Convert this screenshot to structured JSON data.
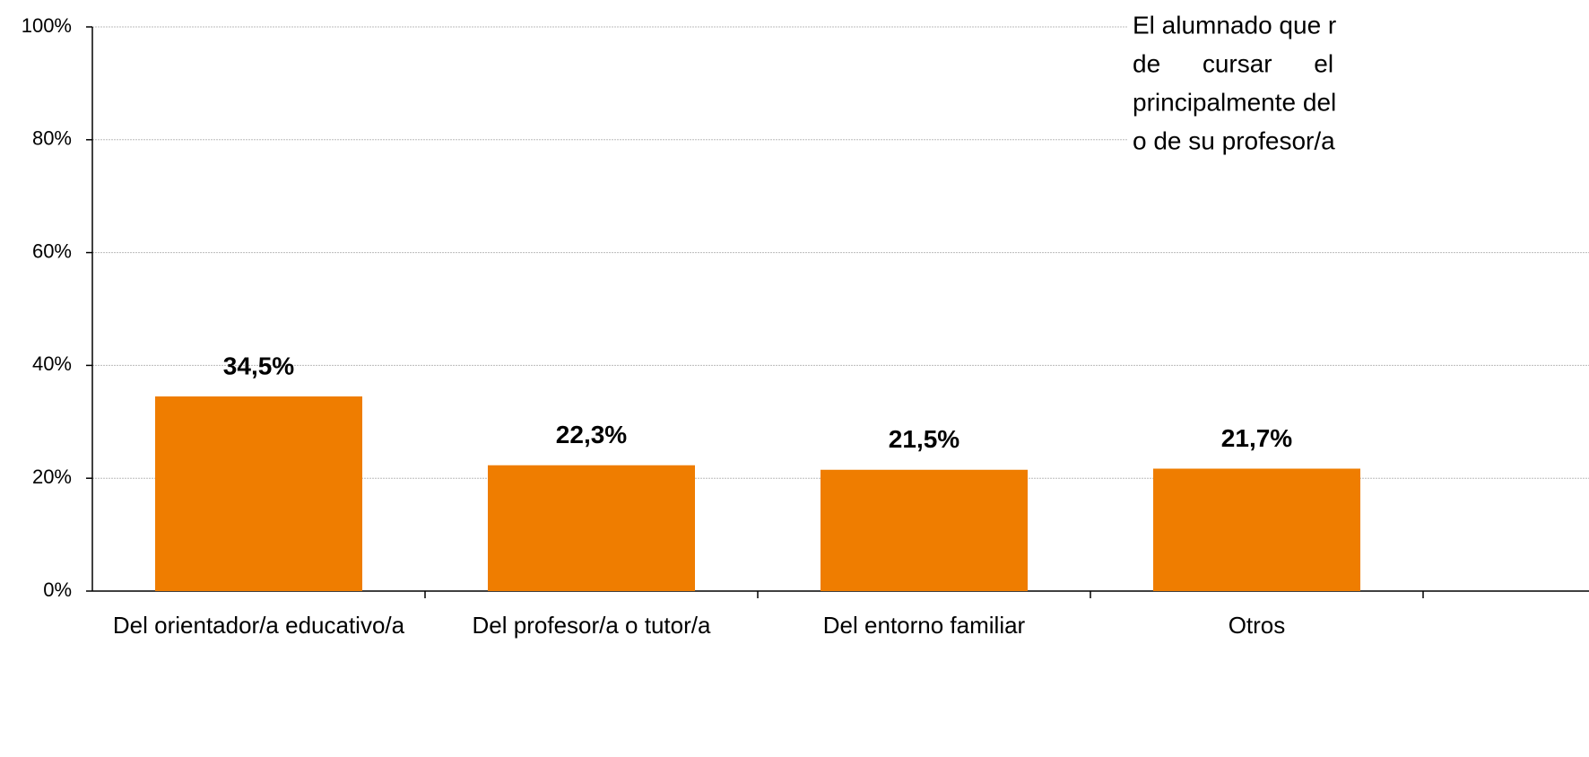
{
  "chart_data": {
    "type": "bar",
    "categories": [
      "Del orientador/a educativo/a",
      "Del profesor/a o tutor/a",
      "Del entorno familiar",
      "Otros"
    ],
    "values": [
      34.5,
      22.3,
      21.5,
      21.7
    ],
    "value_labels": [
      "34,5%",
      "22,3%",
      "21,5%",
      "21,7%"
    ],
    "color": "#ef7d00",
    "ylim": [
      0,
      100
    ],
    "yticks": [
      {
        "value": 0,
        "label": "0%"
      },
      {
        "value": 20,
        "label": "20%"
      },
      {
        "value": 40,
        "label": "40%"
      },
      {
        "value": 60,
        "label": "60%"
      },
      {
        "value": 80,
        "label": "80%"
      },
      {
        "value": 100,
        "label": "100%"
      }
    ],
    "grid": true,
    "annotation": [
      "El alumnado que r",
      "de      cursar      el",
      "principalmente del",
      "o de su profesor/a"
    ]
  }
}
